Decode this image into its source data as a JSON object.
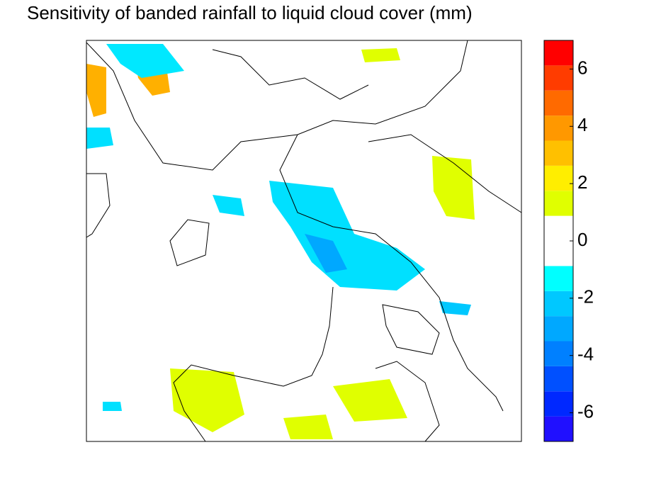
{
  "chart_data": {
    "type": "colorbar",
    "title": "Sensitivity of banded rainfall to liquid cloud cover (mm)",
    "levels": [
      -7,
      -6.125,
      -5.25,
      -4.375,
      -3.5,
      -2.625,
      -1.75,
      -0.875,
      0.875,
      1.75,
      2.625,
      3.5,
      4.375,
      5.25,
      6.125,
      7
    ],
    "colors": [
      "#2010ff",
      "#0028ff",
      "#0050ff",
      "#0080ff",
      "#00a8ff",
      "#00c8ff",
      "#00ffff",
      "#ffffff",
      "#e0ff00",
      "#ffee00",
      "#ffc000",
      "#ff9800",
      "#ff6a00",
      "#ff3c00",
      "#ff0000"
    ],
    "ylim": [
      -7,
      7
    ],
    "yticks": [
      -6,
      -4,
      -2,
      0,
      2,
      4,
      6
    ]
  }
}
